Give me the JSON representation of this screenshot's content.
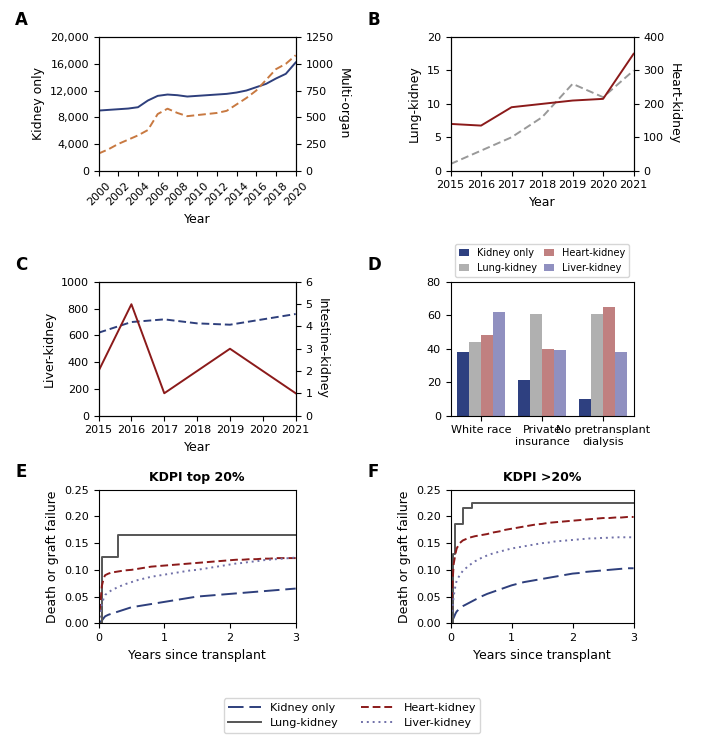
{
  "chart_data": [
    {
      "type": "line",
      "annotations": [
        "A"
      ],
      "xlabel": "Year",
      "ylabel": "Kidney only",
      "y2label": "Multi-organ",
      "x": [
        2000,
        2001,
        2002,
        2003,
        2004,
        2005,
        2006,
        2007,
        2008,
        2009,
        2010,
        2011,
        2012,
        2013,
        2014,
        2015,
        2016,
        2017,
        2018,
        2019,
        2020
      ],
      "xlim": [
        2000,
        2020
      ],
      "xticks": [
        2000,
        2002,
        2004,
        2006,
        2008,
        2010,
        2012,
        2014,
        2016,
        2018,
        2020
      ],
      "ylim": [
        0,
        20000
      ],
      "yticks": [
        0,
        {
          "value": 4000,
          "label": "4,000"
        },
        {
          "value": 8000,
          "label": "8,000"
        },
        {
          "value": 12000,
          "label": "12,000"
        },
        {
          "value": 16000,
          "label": "16,000"
        },
        {
          "value": 20000,
          "label": "20,000"
        }
      ],
      "y2lim": [
        0,
        1250
      ],
      "y2ticks": [
        0,
        250,
        500,
        750,
        1000,
        1250
      ],
      "series": [
        {
          "values": [
            9000,
            9100,
            9200,
            9300,
            9500,
            10500,
            11200,
            11400,
            11300,
            11100,
            11200,
            11300,
            11400,
            11500,
            11700,
            12000,
            12500,
            13000,
            13800,
            14500,
            16200
          ],
          "color": "#2e3f7c",
          "line_style": "solid",
          "axis": "y"
        },
        {
          "values": [
            160,
            200,
            250,
            290,
            330,
            380,
            530,
            580,
            540,
            510,
            520,
            530,
            540,
            560,
            620,
            680,
            750,
            850,
            950,
            1000,
            1080
          ],
          "color": "#c87941",
          "line_style": "dashed",
          "axis": "y2"
        }
      ]
    },
    {
      "type": "line",
      "annotations": [
        "B"
      ],
      "xlabel": "Year",
      "ylabel": "Lung-kidney",
      "y2label": "Heart-kidney",
      "x": [
        2015,
        2016,
        2017,
        2018,
        2019,
        2020,
        2021
      ],
      "xlim": [
        2015,
        2021
      ],
      "xticks": [
        2015,
        2016,
        2017,
        2018,
        2019,
        2020,
        2021
      ],
      "ylim": [
        0,
        20
      ],
      "yticks": [
        0,
        5,
        10,
        15,
        20
      ],
      "y2lim": [
        0,
        400
      ],
      "y2ticks": [
        0,
        100,
        200,
        300,
        400
      ],
      "series": [
        {
          "values": [
            1,
            3,
            5,
            8,
            13,
            11,
            15
          ],
          "color": "#999999",
          "line_style": "dashed",
          "axis": "y"
        },
        {
          "values": [
            140,
            135,
            190,
            200,
            210,
            215,
            350
          ],
          "color": "#8b1a1a",
          "line_style": "solid",
          "axis": "y2"
        }
      ]
    },
    {
      "type": "line",
      "annotations": [
        "C"
      ],
      "xlabel": "Year",
      "ylabel": "Liver-kidney",
      "y2label": "Intestine-kidney",
      "x": [
        2015,
        2016,
        2017,
        2018,
        2019,
        2020,
        2021
      ],
      "xlim": [
        2015,
        2021
      ],
      "xticks": [
        2015,
        2016,
        2017,
        2018,
        2019,
        2020,
        2021
      ],
      "ylim": [
        0,
        1000
      ],
      "yticks": [
        0,
        200,
        400,
        600,
        800,
        1000
      ],
      "y2lim": [
        0,
        6
      ],
      "y2ticks": [
        0,
        1,
        2,
        3,
        4,
        5,
        6
      ],
      "series": [
        {
          "values": [
            620,
            700,
            720,
            690,
            680,
            720,
            760
          ],
          "color": "#2e3f7c",
          "line_style": "dashed",
          "axis": "y"
        },
        {
          "values": [
            2,
            5,
            1,
            2,
            3,
            2,
            1
          ],
          "color": "#8b1a1a",
          "line_style": "solid",
          "axis": "y2"
        }
      ]
    },
    {
      "type": "bar",
      "annotations": [
        "D"
      ],
      "categories": [
        "White race",
        "Private\ninsurance",
        "No pretransplant\ndialysis"
      ],
      "ylim": [
        0,
        80
      ],
      "yticks": [
        0,
        20,
        40,
        60,
        80
      ],
      "legend": "upper center",
      "series": [
        {
          "name": "Kidney only",
          "values": [
            38,
            21,
            10
          ],
          "color": "#2e4080"
        },
        {
          "name": "Lung-kidney",
          "values": [
            44,
            61,
            61
          ],
          "color": "#b0b0b0"
        },
        {
          "name": "Heart-kidney",
          "values": [
            48,
            40,
            65
          ],
          "color": "#c08080"
        },
        {
          "name": "Liver-kidney",
          "values": [
            62,
            39,
            38
          ],
          "color": "#9090c0"
        }
      ]
    },
    {
      "type": "line",
      "annotations": [
        "E"
      ],
      "title": "KDPI top 20%",
      "xlabel": "Years since transplant",
      "ylabel": "Death or graft failure",
      "xlim": [
        0,
        3
      ],
      "xticks": [
        0,
        1,
        2,
        3
      ],
      "ylim": [
        0,
        0.25
      ],
      "yticks": [
        {
          "value": 0.0,
          "label": "0.00"
        },
        0.05,
        {
          "value": 0.1,
          "label": "0.10"
        },
        0.15,
        {
          "value": 0.2,
          "label": "0.20"
        },
        0.25
      ],
      "legend": "lower center",
      "series": [
        {
          "name": "Kidney only",
          "color": "#2e3f7c",
          "line_style": "longdash",
          "type": "line",
          "x": [
            0,
            0.05,
            0.08,
            0.1,
            0.15,
            0.2,
            0.3,
            0.4,
            0.5,
            0.6,
            0.7,
            0.8,
            0.9,
            1.0,
            1.1,
            1.2,
            1.3,
            1.4,
            1.5,
            1.6,
            1.7,
            1.8,
            1.9,
            2.0,
            2.1,
            2.2,
            2.3,
            2.4,
            2.5,
            2.6,
            2.7,
            2.8,
            2.9,
            3.0
          ],
          "values": [
            0,
            0.005,
            0.01,
            0.013,
            0.016,
            0.018,
            0.022,
            0.026,
            0.03,
            0.032,
            0.034,
            0.036,
            0.038,
            0.04,
            0.042,
            0.044,
            0.046,
            0.048,
            0.05,
            0.051,
            0.052,
            0.053,
            0.054,
            0.055,
            0.056,
            0.057,
            0.058,
            0.059,
            0.06,
            0.061,
            0.062,
            0.063,
            0.064,
            0.065
          ]
        },
        {
          "name": "Lung-kidney",
          "color": "#555555",
          "line_style": "solid",
          "type": "step",
          "x": [
            0,
            0.05,
            0.3,
            0.55,
            3.0
          ],
          "values": [
            0,
            0.125,
            0.165,
            0.165,
            0.165
          ]
        },
        {
          "name": "Heart-kidney",
          "color": "#8b1a1a",
          "line_style": "dashed",
          "type": "line",
          "x": [
            0,
            0.03,
            0.05,
            0.08,
            0.1,
            0.15,
            0.2,
            0.3,
            0.4,
            0.5,
            0.6,
            0.7,
            0.8,
            0.9,
            1.0,
            1.1,
            1.2,
            1.3,
            1.4,
            1.5,
            1.6,
            1.7,
            1.8,
            1.9,
            2.0,
            2.1,
            2.2,
            2.3,
            2.4,
            2.5,
            2.6,
            2.7,
            2.8,
            2.9,
            3.0
          ],
          "values": [
            0,
            0.04,
            0.07,
            0.085,
            0.09,
            0.093,
            0.095,
            0.097,
            0.099,
            0.1,
            0.102,
            0.104,
            0.106,
            0.107,
            0.108,
            0.109,
            0.11,
            0.111,
            0.112,
            0.113,
            0.114,
            0.115,
            0.116,
            0.117,
            0.118,
            0.119,
            0.119,
            0.12,
            0.12,
            0.121,
            0.121,
            0.122,
            0.122,
            0.122,
            0.122
          ]
        },
        {
          "name": "Liver-kidney",
          "color": "#7070a8",
          "line_style": "dotted",
          "type": "line",
          "x": [
            0,
            0.03,
            0.05,
            0.08,
            0.1,
            0.15,
            0.2,
            0.3,
            0.4,
            0.5,
            0.6,
            0.7,
            0.8,
            0.9,
            1.0,
            1.1,
            1.2,
            1.3,
            1.4,
            1.5,
            1.6,
            1.7,
            1.8,
            1.9,
            2.0,
            2.1,
            2.2,
            2.3,
            2.4,
            2.5,
            2.6,
            2.7,
            2.8,
            2.9,
            3.0
          ],
          "values": [
            0,
            0.018,
            0.035,
            0.048,
            0.053,
            0.058,
            0.062,
            0.068,
            0.073,
            0.077,
            0.081,
            0.084,
            0.087,
            0.089,
            0.091,
            0.093,
            0.095,
            0.097,
            0.099,
            0.1,
            0.102,
            0.104,
            0.106,
            0.108,
            0.11,
            0.112,
            0.113,
            0.115,
            0.116,
            0.118,
            0.119,
            0.12,
            0.121,
            0.122,
            0.123
          ]
        }
      ]
    },
    {
      "type": "line",
      "annotations": [
        "F"
      ],
      "title": "KDPI >20%",
      "xlabel": "Years since transplant",
      "ylabel": "Death or graft failure",
      "xlim": [
        0,
        3
      ],
      "xticks": [
        0,
        1,
        2,
        3
      ],
      "ylim": [
        0,
        0.25
      ],
      "yticks": [
        {
          "value": 0.0,
          "label": "0.00"
        },
        0.05,
        {
          "value": 0.1,
          "label": "0.10"
        },
        0.15,
        {
          "value": 0.2,
          "label": "0.20"
        },
        0.25
      ],
      "legend": "lower center",
      "series": [
        {
          "name": "Kidney only",
          "color": "#2e3f7c",
          "line_style": "longdash",
          "type": "line",
          "x": [
            0,
            0.05,
            0.08,
            0.1,
            0.15,
            0.2,
            0.3,
            0.4,
            0.5,
            0.6,
            0.7,
            0.8,
            0.9,
            1.0,
            1.1,
            1.2,
            1.3,
            1.4,
            1.5,
            1.6,
            1.7,
            1.8,
            1.9,
            2.0,
            2.1,
            2.2,
            2.3,
            2.4,
            2.5,
            2.6,
            2.7,
            2.8,
            2.9,
            3.0
          ],
          "values": [
            0,
            0.01,
            0.018,
            0.022,
            0.028,
            0.032,
            0.038,
            0.044,
            0.05,
            0.055,
            0.059,
            0.063,
            0.067,
            0.071,
            0.074,
            0.077,
            0.079,
            0.081,
            0.083,
            0.085,
            0.087,
            0.089,
            0.091,
            0.093,
            0.094,
            0.096,
            0.097,
            0.098,
            0.099,
            0.1,
            0.101,
            0.102,
            0.103,
            0.103
          ]
        },
        {
          "name": "Lung-kidney",
          "color": "#555555",
          "line_style": "solid",
          "type": "step",
          "x": [
            0,
            0.04,
            0.08,
            0.2,
            0.35,
            3.0
          ],
          "values": [
            0,
            0.13,
            0.185,
            0.215,
            0.225,
            0.225
          ]
        },
        {
          "name": "Heart-kidney",
          "color": "#8b1a1a",
          "line_style": "dashed",
          "type": "line",
          "x": [
            0,
            0.03,
            0.05,
            0.08,
            0.1,
            0.15,
            0.2,
            0.3,
            0.4,
            0.5,
            0.6,
            0.7,
            0.8,
            0.9,
            1.0,
            1.1,
            1.2,
            1.3,
            1.4,
            1.5,
            1.6,
            1.7,
            1.8,
            1.9,
            2.0,
            2.1,
            2.2,
            2.3,
            2.4,
            2.5,
            2.6,
            2.7,
            2.8,
            2.9,
            3.0
          ],
          "values": [
            0,
            0.07,
            0.11,
            0.13,
            0.14,
            0.15,
            0.155,
            0.16,
            0.163,
            0.165,
            0.167,
            0.17,
            0.172,
            0.175,
            0.177,
            0.179,
            0.181,
            0.183,
            0.185,
            0.186,
            0.188,
            0.189,
            0.19,
            0.191,
            0.192,
            0.193,
            0.194,
            0.195,
            0.196,
            0.197,
            0.197,
            0.198,
            0.198,
            0.199,
            0.199
          ]
        },
        {
          "name": "Liver-kidney",
          "color": "#7070a8",
          "line_style": "dotted",
          "type": "line",
          "x": [
            0,
            0.03,
            0.05,
            0.08,
            0.1,
            0.15,
            0.2,
            0.3,
            0.4,
            0.5,
            0.6,
            0.7,
            0.8,
            0.9,
            1.0,
            1.1,
            1.2,
            1.3,
            1.4,
            1.5,
            1.6,
            1.7,
            1.8,
            1.9,
            2.0,
            2.1,
            2.2,
            2.3,
            2.4,
            2.5,
            2.6,
            2.7,
            2.8,
            2.9,
            3.0
          ],
          "values": [
            0,
            0.025,
            0.05,
            0.07,
            0.08,
            0.09,
            0.098,
            0.108,
            0.116,
            0.122,
            0.127,
            0.131,
            0.134,
            0.137,
            0.14,
            0.142,
            0.144,
            0.146,
            0.148,
            0.15,
            0.151,
            0.153,
            0.154,
            0.155,
            0.156,
            0.157,
            0.158,
            0.159,
            0.159,
            0.16,
            0.16,
            0.161,
            0.161,
            0.161,
            0.161
          ]
        }
      ]
    }
  ]
}
